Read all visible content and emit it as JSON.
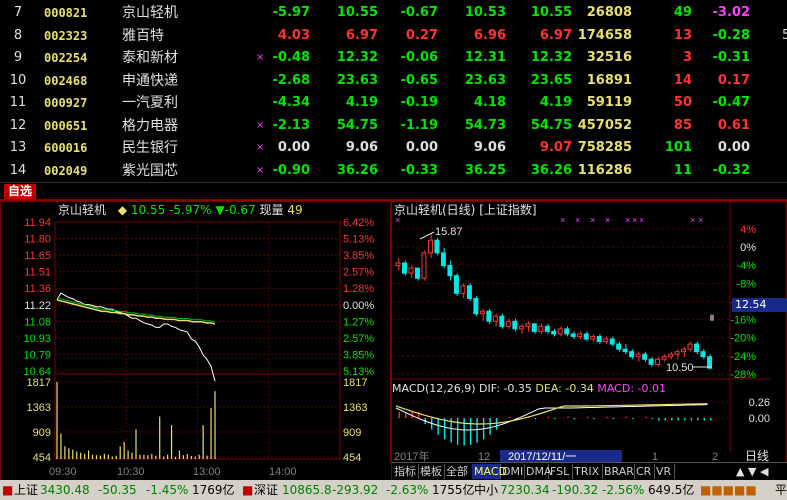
{
  "watchlist": [
    {
      "no": "7",
      "code": "000821",
      "name": "京山轻机",
      "flag": "",
      "pct": "-5.97",
      "price": "10.55",
      "chg": "-0.67",
      "bid": "10.53",
      "ask": "10.55",
      "vol": "26808",
      "cur": "49",
      "spd": "-3.02",
      "ext": "",
      "pct_c": "dn",
      "price_c": "dn",
      "chg_c": "dn",
      "bid_c": "dn",
      "ask_c": "dn",
      "cur_c": "dn",
      "spd_c": "mg"
    },
    {
      "no": "8",
      "code": "002323",
      "name": "雅百特",
      "flag": "",
      "pct": "4.03",
      "price": "6.97",
      "chg": "0.27",
      "bid": "6.96",
      "ask": "6.97",
      "vol": "174658",
      "cur": "13",
      "spd": "-0.28",
      "ext": "5",
      "pct_c": "up",
      "price_c": "up",
      "chg_c": "up",
      "bid_c": "up",
      "ask_c": "up",
      "cur_c": "up",
      "spd_c": "dn"
    },
    {
      "no": "9",
      "code": "002254",
      "name": "泰和新材",
      "flag": "×",
      "pct": "-0.48",
      "price": "12.32",
      "chg": "-0.06",
      "bid": "12.31",
      "ask": "12.32",
      "vol": "32516",
      "cur": "3",
      "spd": "-0.31",
      "ext": "",
      "pct_c": "dn",
      "price_c": "dn",
      "chg_c": "dn",
      "bid_c": "dn",
      "ask_c": "dn",
      "cur_c": "up",
      "spd_c": "dn"
    },
    {
      "no": "10",
      "code": "002468",
      "name": "申通快递",
      "flag": "",
      "pct": "-2.68",
      "price": "23.63",
      "chg": "-0.65",
      "bid": "23.63",
      "ask": "23.65",
      "vol": "16891",
      "cur": "14",
      "spd": "0.17",
      "ext": "",
      "pct_c": "dn",
      "price_c": "dn",
      "chg_c": "dn",
      "bid_c": "dn",
      "ask_c": "dn",
      "cur_c": "up",
      "spd_c": "up"
    },
    {
      "no": "11",
      "code": "000927",
      "name": "一汽夏利",
      "flag": "",
      "pct": "-4.34",
      "price": "4.19",
      "chg": "-0.19",
      "bid": "4.18",
      "ask": "4.19",
      "vol": "59119",
      "cur": "50",
      "spd": "-0.47",
      "ext": "",
      "pct_c": "dn",
      "price_c": "dn",
      "chg_c": "dn",
      "bid_c": "dn",
      "ask_c": "dn",
      "cur_c": "up",
      "spd_c": "dn"
    },
    {
      "no": "12",
      "code": "000651",
      "name": "格力电器",
      "flag": "×",
      "pct": "-2.13",
      "price": "54.75",
      "chg": "-1.19",
      "bid": "54.73",
      "ask": "54.75",
      "vol": "457052",
      "cur": "85",
      "spd": "0.61",
      "ext": "",
      "pct_c": "dn",
      "price_c": "dn",
      "chg_c": "dn",
      "bid_c": "dn",
      "ask_c": "dn",
      "cur_c": "up",
      "spd_c": "up"
    },
    {
      "no": "13",
      "code": "600016",
      "name": "民生银行",
      "flag": "×",
      "pct": "0.00",
      "price": "9.06",
      "chg": "0.00",
      "bid": "9.06",
      "ask": "9.07",
      "vol": "758285",
      "cur": "101",
      "spd": "0.00",
      "ext": "",
      "pct_c": "fl",
      "price_c": "fl",
      "chg_c": "fl",
      "bid_c": "fl",
      "ask_c": "up",
      "cur_c": "dn",
      "spd_c": "fl"
    },
    {
      "no": "14",
      "code": "002049",
      "name": "紫光国芯",
      "flag": "×",
      "pct": "-0.90",
      "price": "36.26",
      "chg": "-0.33",
      "bid": "36.25",
      "ask": "36.26",
      "vol": "116286",
      "cur": "11",
      "spd": "-0.32",
      "ext": "",
      "pct_c": "dn",
      "price_c": "dn",
      "chg_c": "dn",
      "bid_c": "dn",
      "ask_c": "dn",
      "cur_c": "dn",
      "spd_c": "dn"
    }
  ],
  "tab": {
    "label": "自选"
  },
  "intraday": {
    "name": "京山轻机",
    "price_label": "10.55",
    "pct_label": "-5.97%",
    "chg_label": "-0.67",
    "vol_label": "现量",
    "vol_value": "49",
    "price_ticks": [
      "11.94",
      "11.80",
      "11.65",
      "11.51",
      "11.36",
      "11.22",
      "11.08",
      "10.93",
      "10.79",
      "10.64"
    ],
    "pct_ticks": [
      "6.42%",
      "5.13%",
      "3.85%",
      "2.57%",
      "1.28%",
      "0.00%",
      "1.27%",
      "2.57%",
      "3.85%",
      "5.13%"
    ],
    "vol_ticks_left": [
      "1817",
      "1363",
      "909",
      "454"
    ],
    "vol_ticks_right": [
      "1817",
      "1363",
      "909",
      "454"
    ],
    "time_ticks": [
      "09:30",
      "10:30",
      "13:00",
      "14:00"
    ],
    "prev_close": 11.22,
    "price_series": [
      11.26,
      11.32,
      11.3,
      11.28,
      11.27,
      11.25,
      11.24,
      11.22,
      11.22,
      11.21,
      11.2,
      11.2,
      11.19,
      11.18,
      11.18,
      11.16,
      11.15,
      11.14,
      11.12,
      11.1,
      11.1,
      11.08,
      11.06,
      11.05,
      11.04,
      11.02,
      11.02,
      11.05,
      11.05,
      11.03,
      11.02,
      11.0,
      10.99,
      10.98,
      10.92,
      10.9,
      10.85,
      10.78,
      10.74,
      10.68,
      10.55
    ],
    "avg_series": [
      11.26,
      11.25,
      11.24,
      11.23,
      11.22,
      11.21,
      11.2,
      11.19,
      11.18,
      11.17,
      11.16,
      11.16,
      11.15,
      11.15,
      11.14,
      11.14,
      11.13,
      11.13,
      11.12,
      11.12,
      11.11,
      11.11,
      11.1,
      11.1,
      11.09,
      11.09,
      11.09,
      11.08,
      11.08,
      11.08,
      11.07,
      11.07,
      11.07,
      11.06,
      11.06,
      11.05
    ],
    "volumes": [
      1817,
      600,
      300,
      250,
      220,
      180,
      150,
      120,
      200,
      100,
      90,
      80,
      120,
      100,
      60,
      80,
      300,
      400,
      200,
      150,
      700,
      100,
      100,
      90,
      120,
      80,
      1000,
      60,
      100,
      800,
      50,
      200,
      90,
      120,
      70,
      60,
      100,
      800,
      80,
      1200,
      1600
    ]
  },
  "daily": {
    "title": "京山轻机(日线)",
    "index_label": "[上证指数]",
    "high_label": "15.87",
    "low_label": "10.50",
    "last_price": "12.54",
    "pct_ticks": [
      "4%",
      "0%",
      "-4%",
      "-8%",
      "-12%",
      "-16%",
      "-20%",
      "-24%",
      "-28%"
    ],
    "macd_label": "MACD(12,26,9)",
    "dif_label": "DIF:",
    "dif_value": "-0.35",
    "dea_label": "DEA:",
    "dea_value": "-0.34",
    "macd_val_label": "MACD:",
    "macd_value": "-0.01",
    "macd_ticks": [
      "0.26",
      "0.00"
    ],
    "date_ticks": [
      "2017年",
      "12",
      "2017/12/11/一",
      "1",
      "2"
    ],
    "view_label": "日线",
    "candles": [
      [
        14.6,
        14.9,
        14.4,
        14.7
      ],
      [
        14.7,
        14.8,
        14.2,
        14.3
      ],
      [
        14.3,
        14.6,
        14.1,
        14.5
      ],
      [
        14.5,
        14.5,
        14.0,
        14.1
      ],
      [
        14.1,
        15.2,
        14.0,
        15.1
      ],
      [
        15.1,
        15.87,
        14.9,
        15.6
      ],
      [
        15.6,
        15.7,
        15.0,
        15.1
      ],
      [
        15.1,
        15.3,
        14.5,
        14.6
      ],
      [
        14.6,
        14.8,
        14.0,
        14.2
      ],
      [
        14.2,
        14.3,
        13.4,
        13.5
      ],
      [
        13.5,
        13.9,
        13.3,
        13.8
      ],
      [
        13.8,
        13.9,
        13.2,
        13.3
      ],
      [
        13.3,
        13.4,
        12.6,
        12.7
      ],
      [
        12.7,
        12.9,
        12.4,
        12.8
      ],
      [
        12.8,
        12.9,
        12.3,
        12.4
      ],
      [
        12.4,
        12.7,
        12.2,
        12.6
      ],
      [
        12.6,
        12.7,
        12.1,
        12.2
      ],
      [
        12.2,
        12.5,
        12.1,
        12.4
      ],
      [
        12.4,
        12.5,
        12.0,
        12.1
      ],
      [
        12.1,
        12.3,
        11.9,
        12.2
      ],
      [
        12.2,
        12.4,
        12.0,
        12.3
      ],
      [
        12.3,
        12.3,
        11.9,
        12.0
      ],
      [
        12.0,
        12.3,
        11.9,
        12.2
      ],
      [
        12.2,
        12.3,
        11.9,
        12.0
      ],
      [
        12.0,
        12.1,
        11.8,
        11.9
      ],
      [
        11.9,
        12.2,
        11.8,
        12.1
      ],
      [
        12.1,
        12.2,
        11.8,
        11.9
      ],
      [
        11.9,
        12.0,
        11.7,
        11.8
      ],
      [
        11.8,
        12.0,
        11.7,
        11.9
      ],
      [
        11.9,
        12.0,
        11.6,
        11.7
      ],
      [
        11.7,
        11.9,
        11.6,
        11.8
      ],
      [
        11.8,
        11.9,
        11.5,
        11.6
      ],
      [
        11.6,
        11.8,
        11.5,
        11.7
      ],
      [
        11.7,
        11.8,
        11.4,
        11.5
      ],
      [
        11.5,
        11.6,
        11.2,
        11.3
      ],
      [
        11.3,
        11.5,
        11.1,
        11.2
      ],
      [
        11.2,
        11.3,
        10.9,
        11.0
      ],
      [
        11.0,
        11.2,
        10.8,
        11.1
      ],
      [
        11.1,
        11.2,
        10.8,
        10.9
      ],
      [
        10.9,
        11.0,
        10.6,
        10.7
      ],
      [
        10.7,
        11.0,
        10.6,
        10.9
      ],
      [
        10.9,
        11.1,
        10.8,
        11.0
      ],
      [
        11.0,
        11.2,
        10.9,
        11.1
      ],
      [
        11.1,
        11.3,
        10.9,
        11.2
      ],
      [
        11.2,
        11.4,
        11.0,
        11.3
      ],
      [
        11.3,
        11.6,
        11.2,
        11.5
      ],
      [
        11.5,
        11.6,
        11.1,
        11.2
      ],
      [
        11.2,
        11.3,
        10.9,
        11.0
      ],
      [
        11.0,
        11.1,
        10.5,
        10.55
      ]
    ],
    "last_marker": 12.54
  },
  "indicator_tabs": [
    "指标",
    "模板",
    "全部",
    "MACD",
    "DMI",
    "DMA",
    "FSL",
    "TRIX",
    "BRAR",
    "CR",
    "VR"
  ],
  "indicator_active": "MACD",
  "statusbar": {
    "sh_label": "上证",
    "sh_val": "3430.48",
    "sh_chg": "-50.35",
    "sh_pct": "-1.45%",
    "sh_amt": "1769亿",
    "sz_label": "深证",
    "sz_val": "10865.8",
    "sz_chg": "-293.92",
    "sz_pct": "-2.63%",
    "sz_amt": "1755亿",
    "zx_label": "中小",
    "zx_val": "7230.34",
    "zx_chg": "-190.32",
    "zx_pct": "-2.56%",
    "zx_amt": "649.5亿",
    "end_label": "平"
  }
}
